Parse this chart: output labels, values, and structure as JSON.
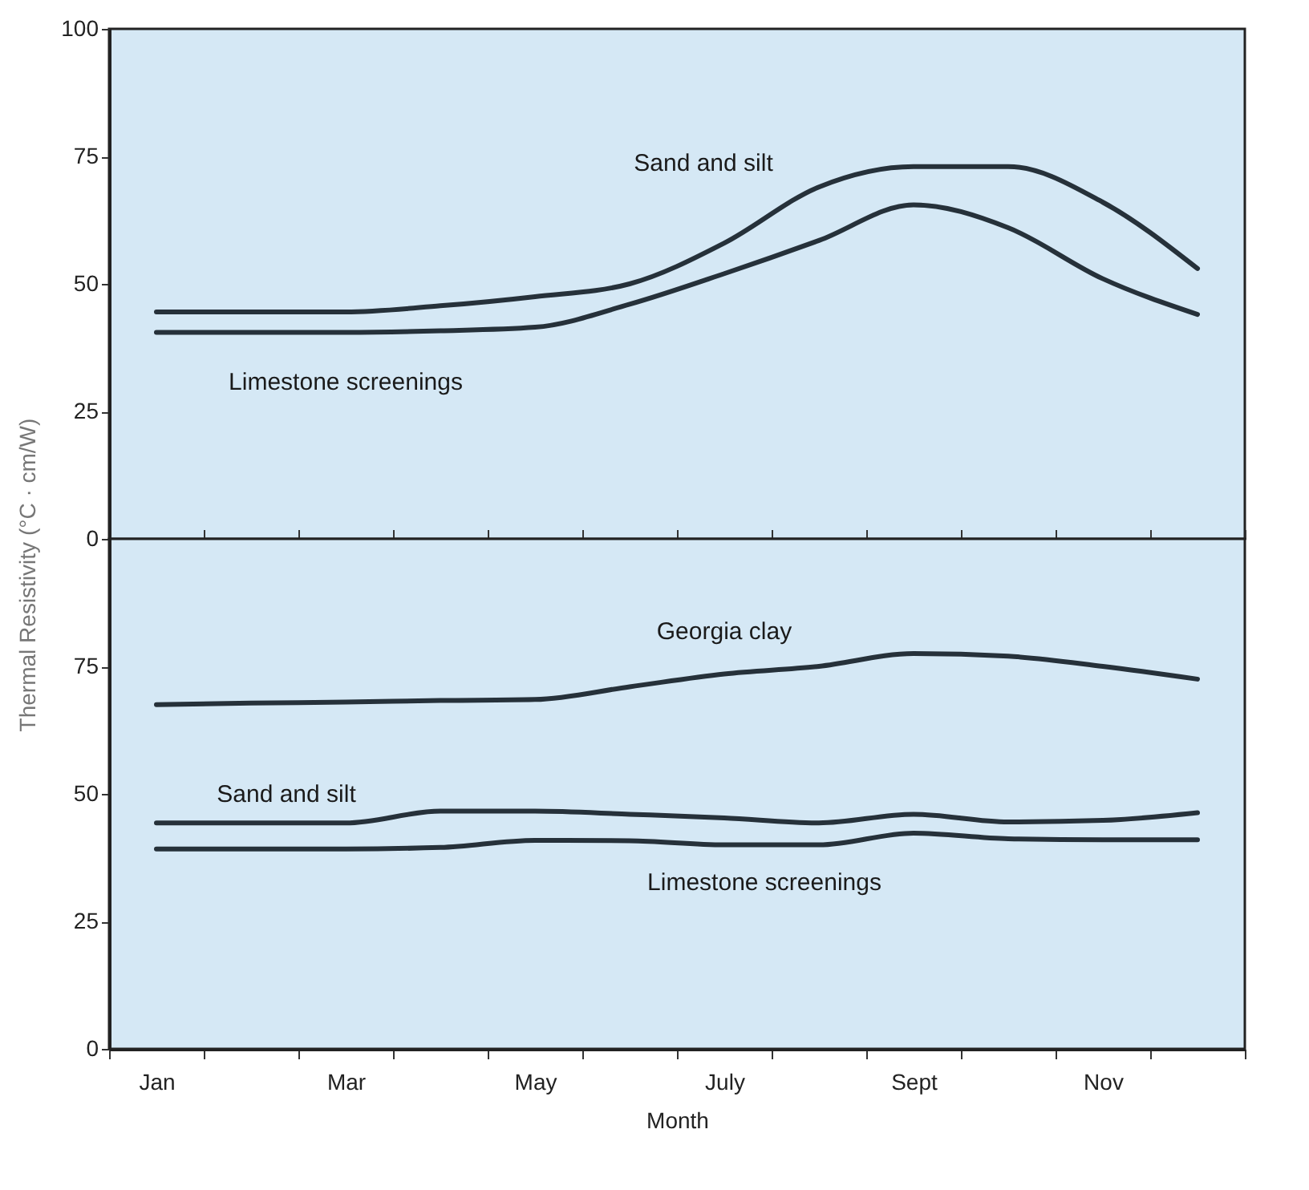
{
  "chart_data": [
    {
      "type": "line",
      "ylabel": "Thermal Resistivity (°C · cm/W)",
      "categories": [
        null,
        null,
        null,
        null,
        null,
        null,
        null,
        null,
        null,
        null,
        null,
        null
      ],
      "ylim": [
        0,
        100
      ],
      "yticks": [
        0,
        25,
        50,
        75,
        100
      ],
      "tick_labels": "y",
      "series": [
        {
          "name": "Sand and silt",
          "color": "#26313a",
          "values": [
            44.5,
            44.5,
            44.5,
            45.7,
            47.5,
            50,
            58,
            69,
            73,
            73,
            66,
            53
          ]
        },
        {
          "name": "Limestone screenings",
          "color": "#26313a",
          "values": [
            40.5,
            40.5,
            40.5,
            40.8,
            41.5,
            46,
            52,
            58.5,
            65.5,
            61,
            51,
            44
          ]
        }
      ]
    },
    {
      "type": "line",
      "xlabel": "Month",
      "categories": [
        "Jan",
        null,
        "Mar",
        null,
        "May",
        null,
        "July",
        null,
        "Sept",
        null,
        "Nov",
        null
      ],
      "ylim": [
        0,
        100
      ],
      "yticks": [
        0,
        25,
        50,
        75
      ],
      "series": [
        {
          "name": "Georgia clay",
          "color": "#26313a",
          "values": [
            67.5,
            67.8,
            68,
            68.3,
            68.5,
            71,
            73.5,
            75,
            77.5,
            77,
            75,
            72.5
          ]
        },
        {
          "name": "Sand and silt",
          "color": "#26313a",
          "values": [
            44.3,
            44.3,
            44.3,
            46.6,
            46.6,
            46,
            45.3,
            44.3,
            46,
            44.5,
            44.8,
            46.3
          ]
        },
        {
          "name": "Limestone screenings",
          "color": "#26313a",
          "values": [
            39.2,
            39.2,
            39.2,
            39.5,
            40.9,
            40.8,
            40,
            40,
            42.3,
            41.2,
            41,
            41
          ]
        }
      ]
    }
  ]
}
